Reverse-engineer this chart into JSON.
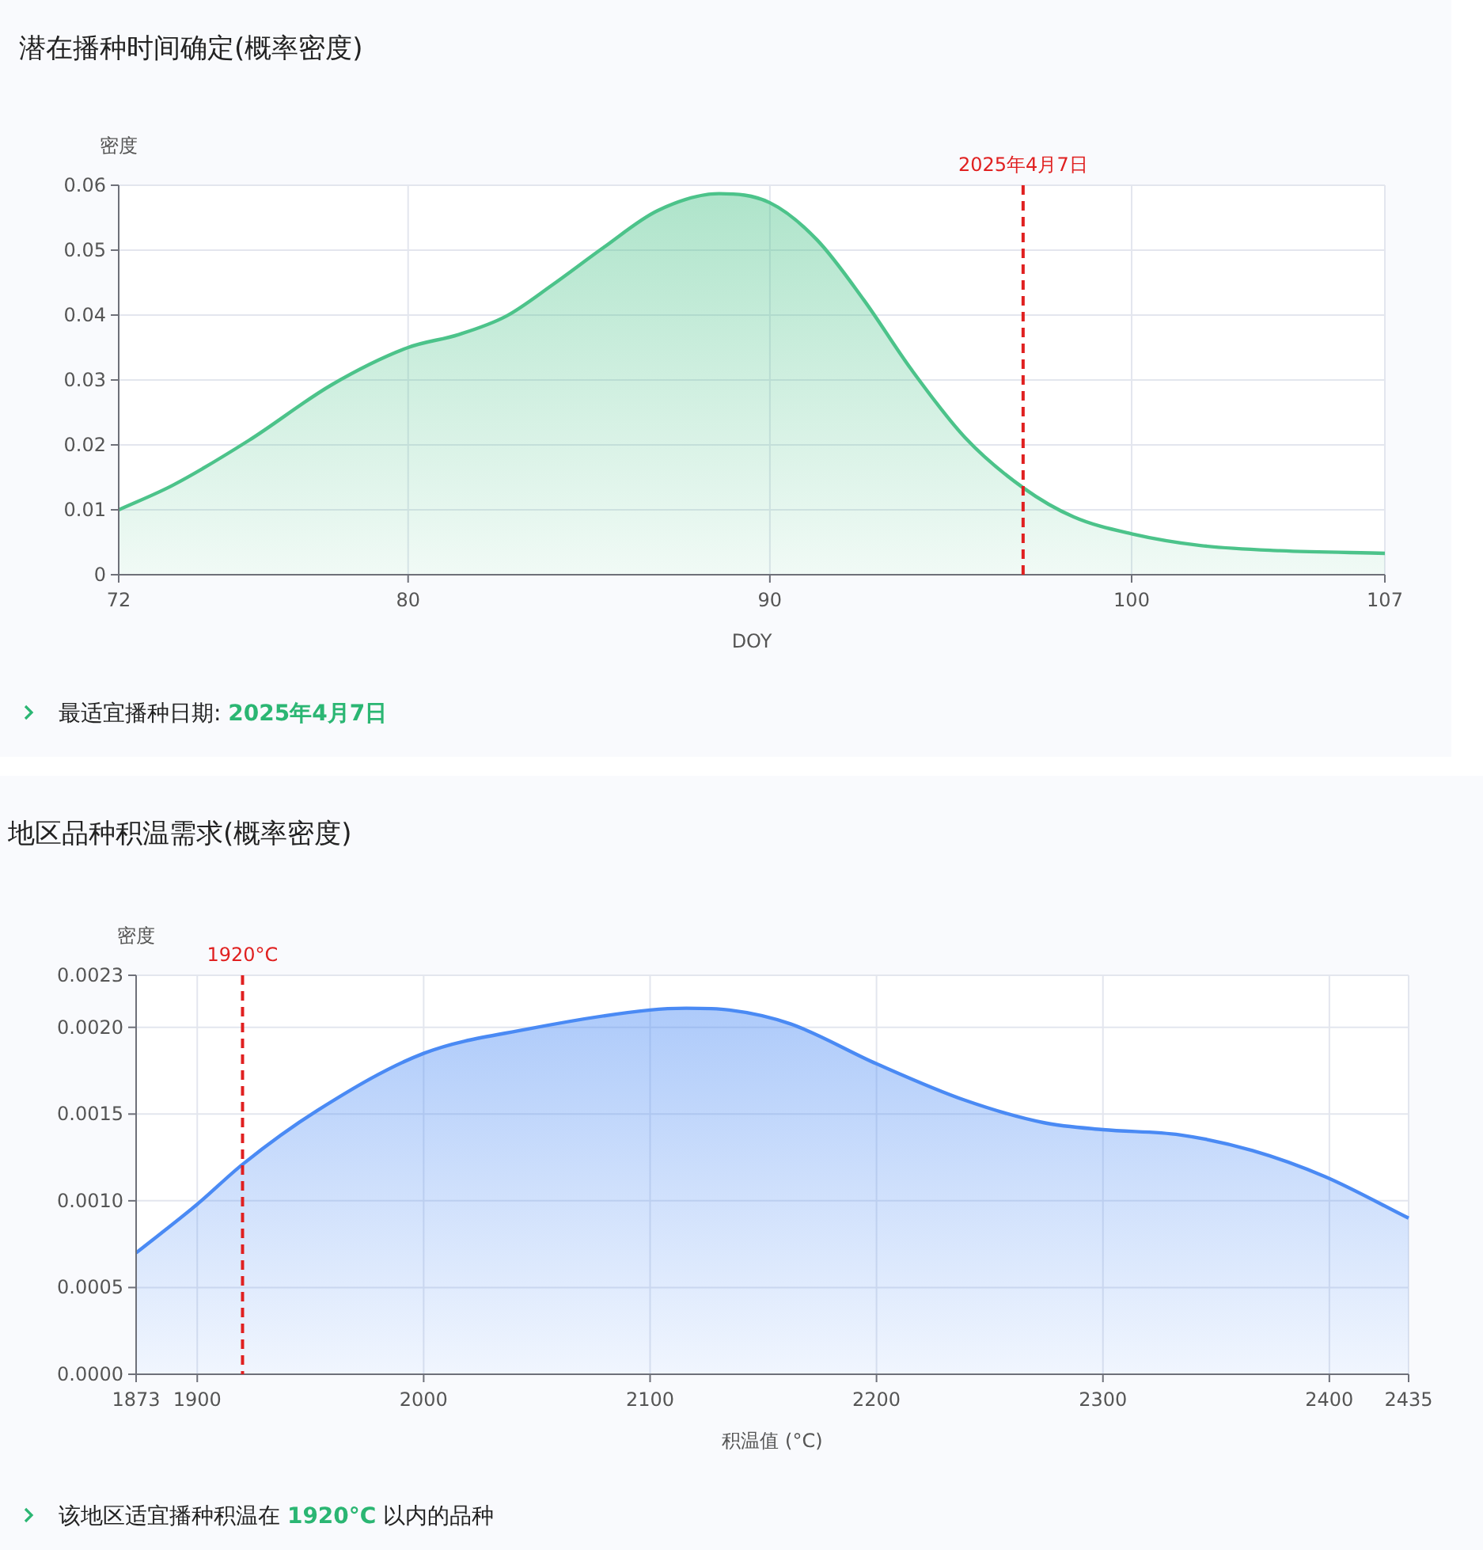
{
  "chart_data": [
    {
      "type": "area",
      "title": "潜在播种时间确定(概率密度)",
      "ylabel": "密度",
      "xlabel": "DOY",
      "grid": true,
      "xlim": [
        72,
        107
      ],
      "xticks": [
        72,
        80,
        90,
        100,
        107
      ],
      "ylim": [
        0,
        0.06
      ],
      "yticks": [
        0,
        0.01,
        0.02,
        0.03,
        0.04,
        0.05,
        0.06
      ],
      "series": [
        {
          "color": "#4cc38a",
          "x": [
            72,
            73.5,
            75.6,
            77.9,
            80,
            81.4,
            82.7,
            84,
            85.4,
            86.9,
            88.6,
            90,
            91.3,
            92.6,
            93.9,
            95.4,
            97,
            98.4,
            100,
            101.9,
            104.1,
            107
          ],
          "values": [
            0.01,
            0.0138,
            0.0207,
            0.0293,
            0.035,
            0.037,
            0.0398,
            0.0447,
            0.0504,
            0.0561,
            0.0587,
            0.0573,
            0.0516,
            0.0423,
            0.0317,
            0.0211,
            0.0134,
            0.0089,
            0.0063,
            0.0045,
            0.0037,
            0.0033
          ]
        }
      ],
      "ref_lines": [
        {
          "axis": "x",
          "value": 97,
          "label": "2025年4月7日",
          "color": "#e02020",
          "line_style": "dashed"
        }
      ],
      "annotations": [
        "最适宜播种日期: ",
        "2025年4月7日"
      ]
    },
    {
      "type": "area",
      "title": "地区品种积温需求(概率密度)",
      "ylabel": "密度",
      "xlabel": "积温值 (°C)",
      "grid": true,
      "xlim": [
        1873,
        2435
      ],
      "xticks": [
        1873,
        1900,
        2000,
        2100,
        2200,
        2300,
        2400,
        2435
      ],
      "ylim": [
        0,
        0.0023
      ],
      "yticks": [
        {
          "value": 0,
          "label": "0.0000"
        },
        {
          "value": 0.0005,
          "label": "0.0005"
        },
        {
          "value": 0.001,
          "label": "0.0010"
        },
        {
          "value": 0.0015,
          "label": "0.0015"
        },
        {
          "value": 0.002,
          "label": "0.0020"
        },
        0.0023
      ],
      "series": [
        {
          "color": "#4a8af4",
          "x": [
            1873,
            1900,
            1920,
            1953,
            2000,
            2046,
            2100,
            2116,
            2135,
            2162,
            2200,
            2239,
            2274,
            2300,
            2334,
            2366,
            2398,
            2435
          ],
          "values": [
            0.0007,
            0.00098,
            0.00121,
            0.00152,
            0.00185,
            0.00199,
            0.0021,
            0.00211,
            0.0021,
            0.00202,
            0.00179,
            0.00158,
            0.00145,
            0.00141,
            0.00138,
            0.00129,
            0.00114,
            0.0009
          ]
        }
      ],
      "ref_lines": [
        {
          "axis": "x",
          "value": 1920,
          "label": "1920°C",
          "color": "#e02020",
          "line_style": "dashed"
        }
      ],
      "annotations": [
        "该地区适宜播种积温在 ",
        "1920°C",
        " 以内的品种"
      ]
    }
  ]
}
